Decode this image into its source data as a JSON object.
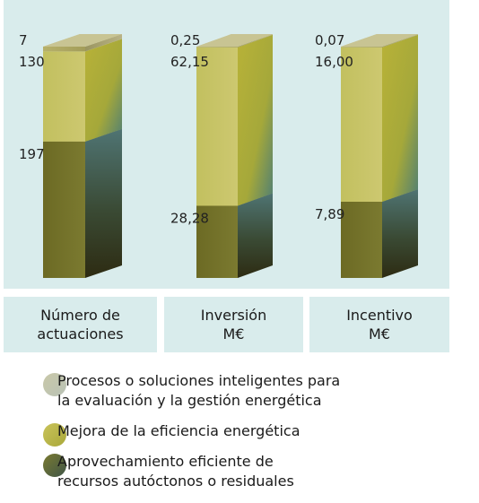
{
  "chart_data": {
    "type": "bar",
    "stacked": "percent",
    "categories": [
      "Número de\nactuaciones",
      "Inversión\nM€",
      "Incentivo\nM€"
    ],
    "series": [
      {
        "name": "Procesos o soluciones inteligentes para\nla evaluación y la gestión energética",
        "values": [
          7,
          0.25,
          0.07
        ],
        "labels": [
          "7",
          "0,25",
          "0,07"
        ],
        "color": "#c7c495"
      },
      {
        "name": "Mejora de la eficiencia energética",
        "values": [
          130,
          62.15,
          16.0
        ],
        "labels": [
          "130",
          "62,15",
          "16,00"
        ],
        "color": "#b9b247"
      },
      {
        "name": "Aprovechamiento eficiente de\nrecursos autóctonos o residuales",
        "values": [
          197,
          28.28,
          7.89
        ],
        "labels": [
          "197",
          "28,28",
          "7,89"
        ],
        "color": "#6b6a25"
      }
    ],
    "legend_position": "bottom"
  }
}
